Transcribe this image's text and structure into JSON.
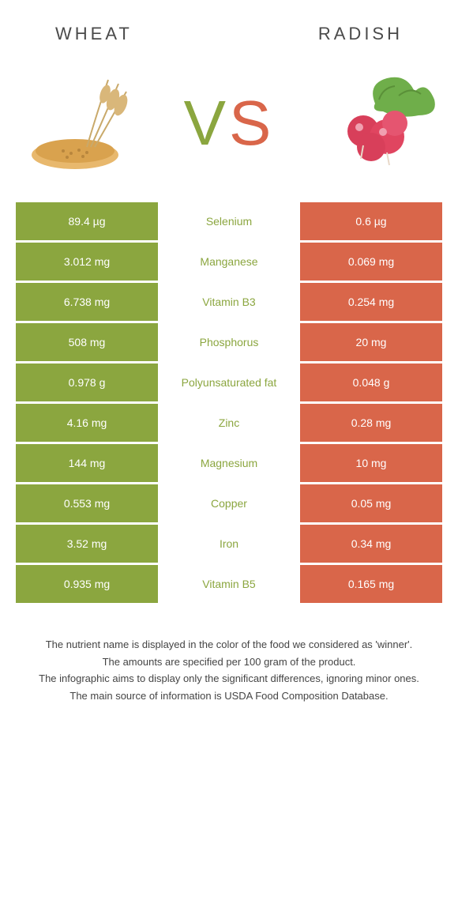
{
  "colors": {
    "left": "#8ba63f",
    "right": "#d9664a",
    "text": "#333333",
    "bg": "#ffffff"
  },
  "header": {
    "left_title": "Wheat",
    "right_title": "Radish"
  },
  "vs": {
    "v": "V",
    "s": "S"
  },
  "rows": [
    {
      "left": "89.4 µg",
      "name": "Selenium",
      "right": "0.6 µg",
      "winner": "left"
    },
    {
      "left": "3.012 mg",
      "name": "Manganese",
      "right": "0.069 mg",
      "winner": "left"
    },
    {
      "left": "6.738 mg",
      "name": "Vitamin B3",
      "right": "0.254 mg",
      "winner": "left"
    },
    {
      "left": "508 mg",
      "name": "Phosphorus",
      "right": "20 mg",
      "winner": "left"
    },
    {
      "left": "0.978 g",
      "name": "Polyunsaturated fat",
      "right": "0.048 g",
      "winner": "left"
    },
    {
      "left": "4.16 mg",
      "name": "Zinc",
      "right": "0.28 mg",
      "winner": "left"
    },
    {
      "left": "144 mg",
      "name": "Magnesium",
      "right": "10 mg",
      "winner": "left"
    },
    {
      "left": "0.553 mg",
      "name": "Copper",
      "right": "0.05 mg",
      "winner": "left"
    },
    {
      "left": "3.52 mg",
      "name": "Iron",
      "right": "0.34 mg",
      "winner": "left"
    },
    {
      "left": "0.935 mg",
      "name": "Vitamin B5",
      "right": "0.165 mg",
      "winner": "left"
    }
  ],
  "footer": {
    "l1": "The nutrient name is displayed in the color of the food we considered as 'winner'.",
    "l2": "The amounts are specified per 100 gram of the product.",
    "l3": "The infographic aims to display only the significant differences, ignoring minor ones.",
    "l4": "The main source of information is USDA Food Composition Database."
  }
}
